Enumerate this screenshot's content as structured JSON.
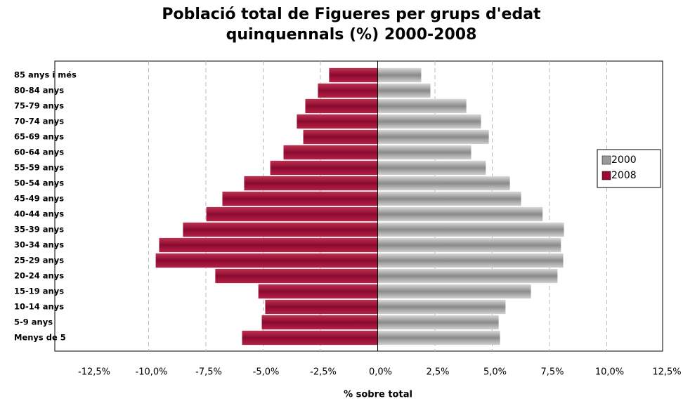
{
  "chart_data": {
    "type": "pyramid",
    "title": [
      "Població total de Figueres per grups d'edat",
      "quinquennals (%) 2000-2008"
    ],
    "x_label": "% sobre total",
    "categories": [
      "Menys de 5",
      "5-9 anys",
      "10-14 anys",
      "15-19 anys",
      "20-24 anys",
      "25-29 anys",
      "30-34 anys",
      "35-39 anys",
      "40-44 anys",
      "45-49 anys",
      "50-54 anys",
      "55-59 anys",
      "60-64 anys",
      "65-69 anys",
      "70-74 anys",
      "75-79 anys",
      "80-84 anys",
      "85 anys i més"
    ],
    "series": [
      {
        "name": "2000",
        "color": "#9a9a9a",
        "values": [
          5.34,
          5.28,
          5.58,
          6.69,
          7.85,
          8.1,
          8.0,
          8.13,
          7.2,
          6.26,
          5.77,
          4.72,
          4.08,
          4.85,
          4.51,
          3.87,
          2.3,
          1.9
        ]
      },
      {
        "name": "2008",
        "color": "#9b0a35",
        "values": [
          -5.92,
          -5.06,
          -4.91,
          -5.21,
          -7.09,
          -9.69,
          -9.54,
          -8.5,
          -7.48,
          -6.78,
          -5.83,
          -4.69,
          -4.11,
          -3.25,
          -3.53,
          -3.16,
          -2.61,
          -2.12
        ]
      }
    ],
    "xlim": [
      -12.5,
      12.5
    ],
    "xticks": [
      {
        "value": -12.5,
        "label": "-12,5%"
      },
      {
        "value": -10,
        "label": "-10,0%"
      },
      {
        "value": -7.5,
        "label": "-7,5%"
      },
      {
        "value": -5,
        "label": "-5,0%"
      },
      {
        "value": -2.5,
        "label": "-2,5%"
      },
      {
        "value": 0,
        "label": "0,0%"
      },
      {
        "value": 2.5,
        "label": "2,5%"
      },
      {
        "value": 5,
        "label": "5,0%"
      },
      {
        "value": 7.5,
        "label": "7,5%"
      },
      {
        "value": 10,
        "label": "10,0%"
      },
      {
        "value": 12.5,
        "label": "12,5%"
      }
    ],
    "grid": true,
    "legend": "right"
  }
}
